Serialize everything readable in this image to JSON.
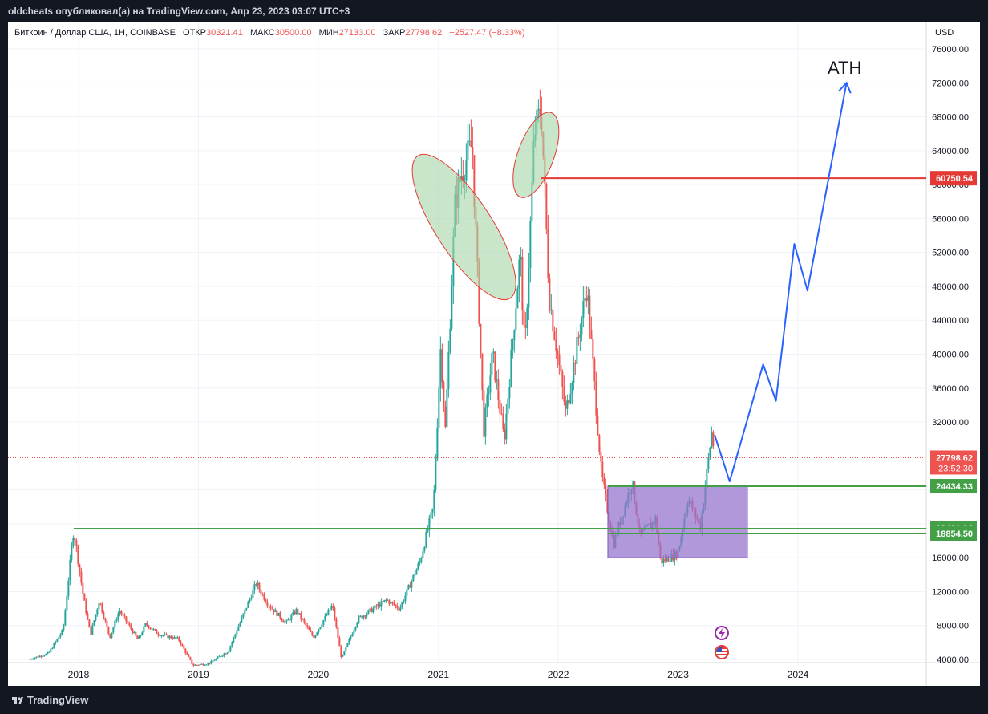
{
  "header": {
    "publisher_line": "oldcheats опубликовал(а) на TradingView.com, Апр 23, 2023 03:07 UTC+3"
  },
  "legend": {
    "symbol": "Биткоин / Доллар США, 1Н, COINBASE",
    "open_label": "ОТКР",
    "open_value": "30321.41",
    "high_label": "МАКС",
    "high_value": "30500.00",
    "low_label": "МИН",
    "low_value": "27133.00",
    "close_label": "ЗАКР",
    "close_value": "27798.62",
    "change": "−2527.47 (−8.33%)"
  },
  "price_scale": {
    "unit": "USD"
  },
  "annotation": {
    "ath": "ATH"
  },
  "footer": {
    "brand": "TradingView"
  },
  "colors": {
    "up": "#26a69a",
    "down": "#ef5350",
    "resistance": "#e53935",
    "support": "#43a047",
    "projection": "#2962ff",
    "zone_fill": "#9575cd",
    "ellipse_fill": "#a5d6a7"
  },
  "chart_data": {
    "type": "candlestick",
    "x_ticks": [
      "2018",
      "2019",
      "2020",
      "2021",
      "2022",
      "2023",
      "2024"
    ],
    "y_ticks": [
      "4000.00",
      "8000.00",
      "12000.00",
      "16000.00",
      "20000.00",
      "24000.00",
      "28000.00",
      "32000.00",
      "36000.00",
      "40000.00",
      "44000.00",
      "48000.00",
      "52000.00",
      "56000.00",
      "60000.00",
      "64000.00",
      "68000.00",
      "72000.00",
      "76000.00"
    ],
    "ylim": [
      4000,
      76000
    ],
    "price_path": [
      [
        "2017-08-01",
        4000
      ],
      [
        "2017-10-01",
        4700
      ],
      [
        "2017-11-15",
        7500
      ],
      [
        "2017-12-17",
        19400
      ],
      [
        "2018-01-15",
        11500
      ],
      [
        "2018-02-06",
        6900
      ],
      [
        "2018-03-05",
        11000
      ],
      [
        "2018-04-06",
        6600
      ],
      [
        "2018-05-05",
        9800
      ],
      [
        "2018-07-01",
        6300
      ],
      [
        "2018-07-25",
        8200
      ],
      [
        "2018-09-01",
        7000
      ],
      [
        "2018-11-01",
        6400
      ],
      [
        "2018-12-15",
        3300
      ],
      [
        "2019-02-01",
        3500
      ],
      [
        "2019-04-02",
        5000
      ],
      [
        "2019-06-26",
        13000
      ],
      [
        "2019-08-01",
        10500
      ],
      [
        "2019-09-25",
        8300
      ],
      [
        "2019-10-26",
        9800
      ],
      [
        "2019-12-17",
        6600
      ],
      [
        "2020-02-13",
        10400
      ],
      [
        "2020-03-12",
        4100
      ],
      [
        "2020-05-01",
        8800
      ],
      [
        "2020-07-27",
        11000
      ],
      [
        "2020-09-05",
        10000
      ],
      [
        "2020-11-05",
        15500
      ],
      [
        "2020-12-17",
        22000
      ],
      [
        "2021-01-08",
        41000
      ],
      [
        "2021-01-22",
        31000
      ],
      [
        "2021-02-21",
        58000
      ],
      [
        "2021-03-13",
        61500
      ],
      [
        "2021-04-14",
        64800
      ],
      [
        "2021-05-19",
        31000
      ],
      [
        "2021-06-15",
        40000
      ],
      [
        "2021-07-20",
        29800
      ],
      [
        "2021-09-07",
        52000
      ],
      [
        "2021-09-21",
        40000
      ],
      [
        "2021-10-20",
        66000
      ],
      [
        "2021-11-10",
        69000
      ],
      [
        "2021-12-04",
        47000
      ],
      [
        "2022-01-24",
        33000
      ],
      [
        "2022-03-29",
        48000
      ],
      [
        "2022-05-12",
        26000
      ],
      [
        "2022-06-18",
        17600
      ],
      [
        "2022-08-14",
        25000
      ],
      [
        "2022-09-07",
        18500
      ],
      [
        "2022-10-25",
        20500
      ],
      [
        "2022-11-09",
        15500
      ],
      [
        "2022-12-31",
        16500
      ],
      [
        "2023-01-31",
        23000
      ],
      [
        "2023-03-10",
        19700
      ],
      [
        "2023-04-14",
        31000
      ],
      [
        "2023-04-22",
        27800
      ]
    ],
    "levels": [
      {
        "price": 60750.54,
        "label": "60750.54",
        "color": "#e53935",
        "from": "2021-11-10"
      },
      {
        "price": 24434.33,
        "label": "24434.33",
        "color": "#43a047",
        "from": "2022-06-01"
      },
      {
        "price": 19421.94,
        "label": "19421.94",
        "color": "#43a047",
        "from": "2017-12-17"
      },
      {
        "price": 18854.5,
        "label": "18854.50",
        "color": "#43a047",
        "from": "2022-06-01"
      }
    ],
    "last_price": {
      "value": 27798.62,
      "label": "27798.62",
      "countdown": "23:52:30"
    },
    "zone": {
      "from": "2022-06-01",
      "to": "2023-07-31",
      "low": 16000,
      "high": 24434.33
    },
    "ellipses": [
      {
        "x_center": "2021-03-20",
        "y_center": 55000,
        "x_radius_days": 85,
        "y_radius": 10000,
        "rotate": -33
      },
      {
        "x_center": "2021-10-25",
        "y_center": 63500,
        "x_radius_days": 55,
        "y_radius": 5300,
        "rotate": 20
      }
    ],
    "projection": [
      [
        "2023-04-22",
        30500
      ],
      [
        "2023-06-07",
        25000
      ],
      [
        "2023-09-17",
        38800
      ],
      [
        "2023-10-26",
        34500
      ],
      [
        "2023-12-21",
        53000
      ],
      [
        "2024-01-30",
        47500
      ],
      [
        "2024-05-28",
        72000
      ]
    ]
  }
}
